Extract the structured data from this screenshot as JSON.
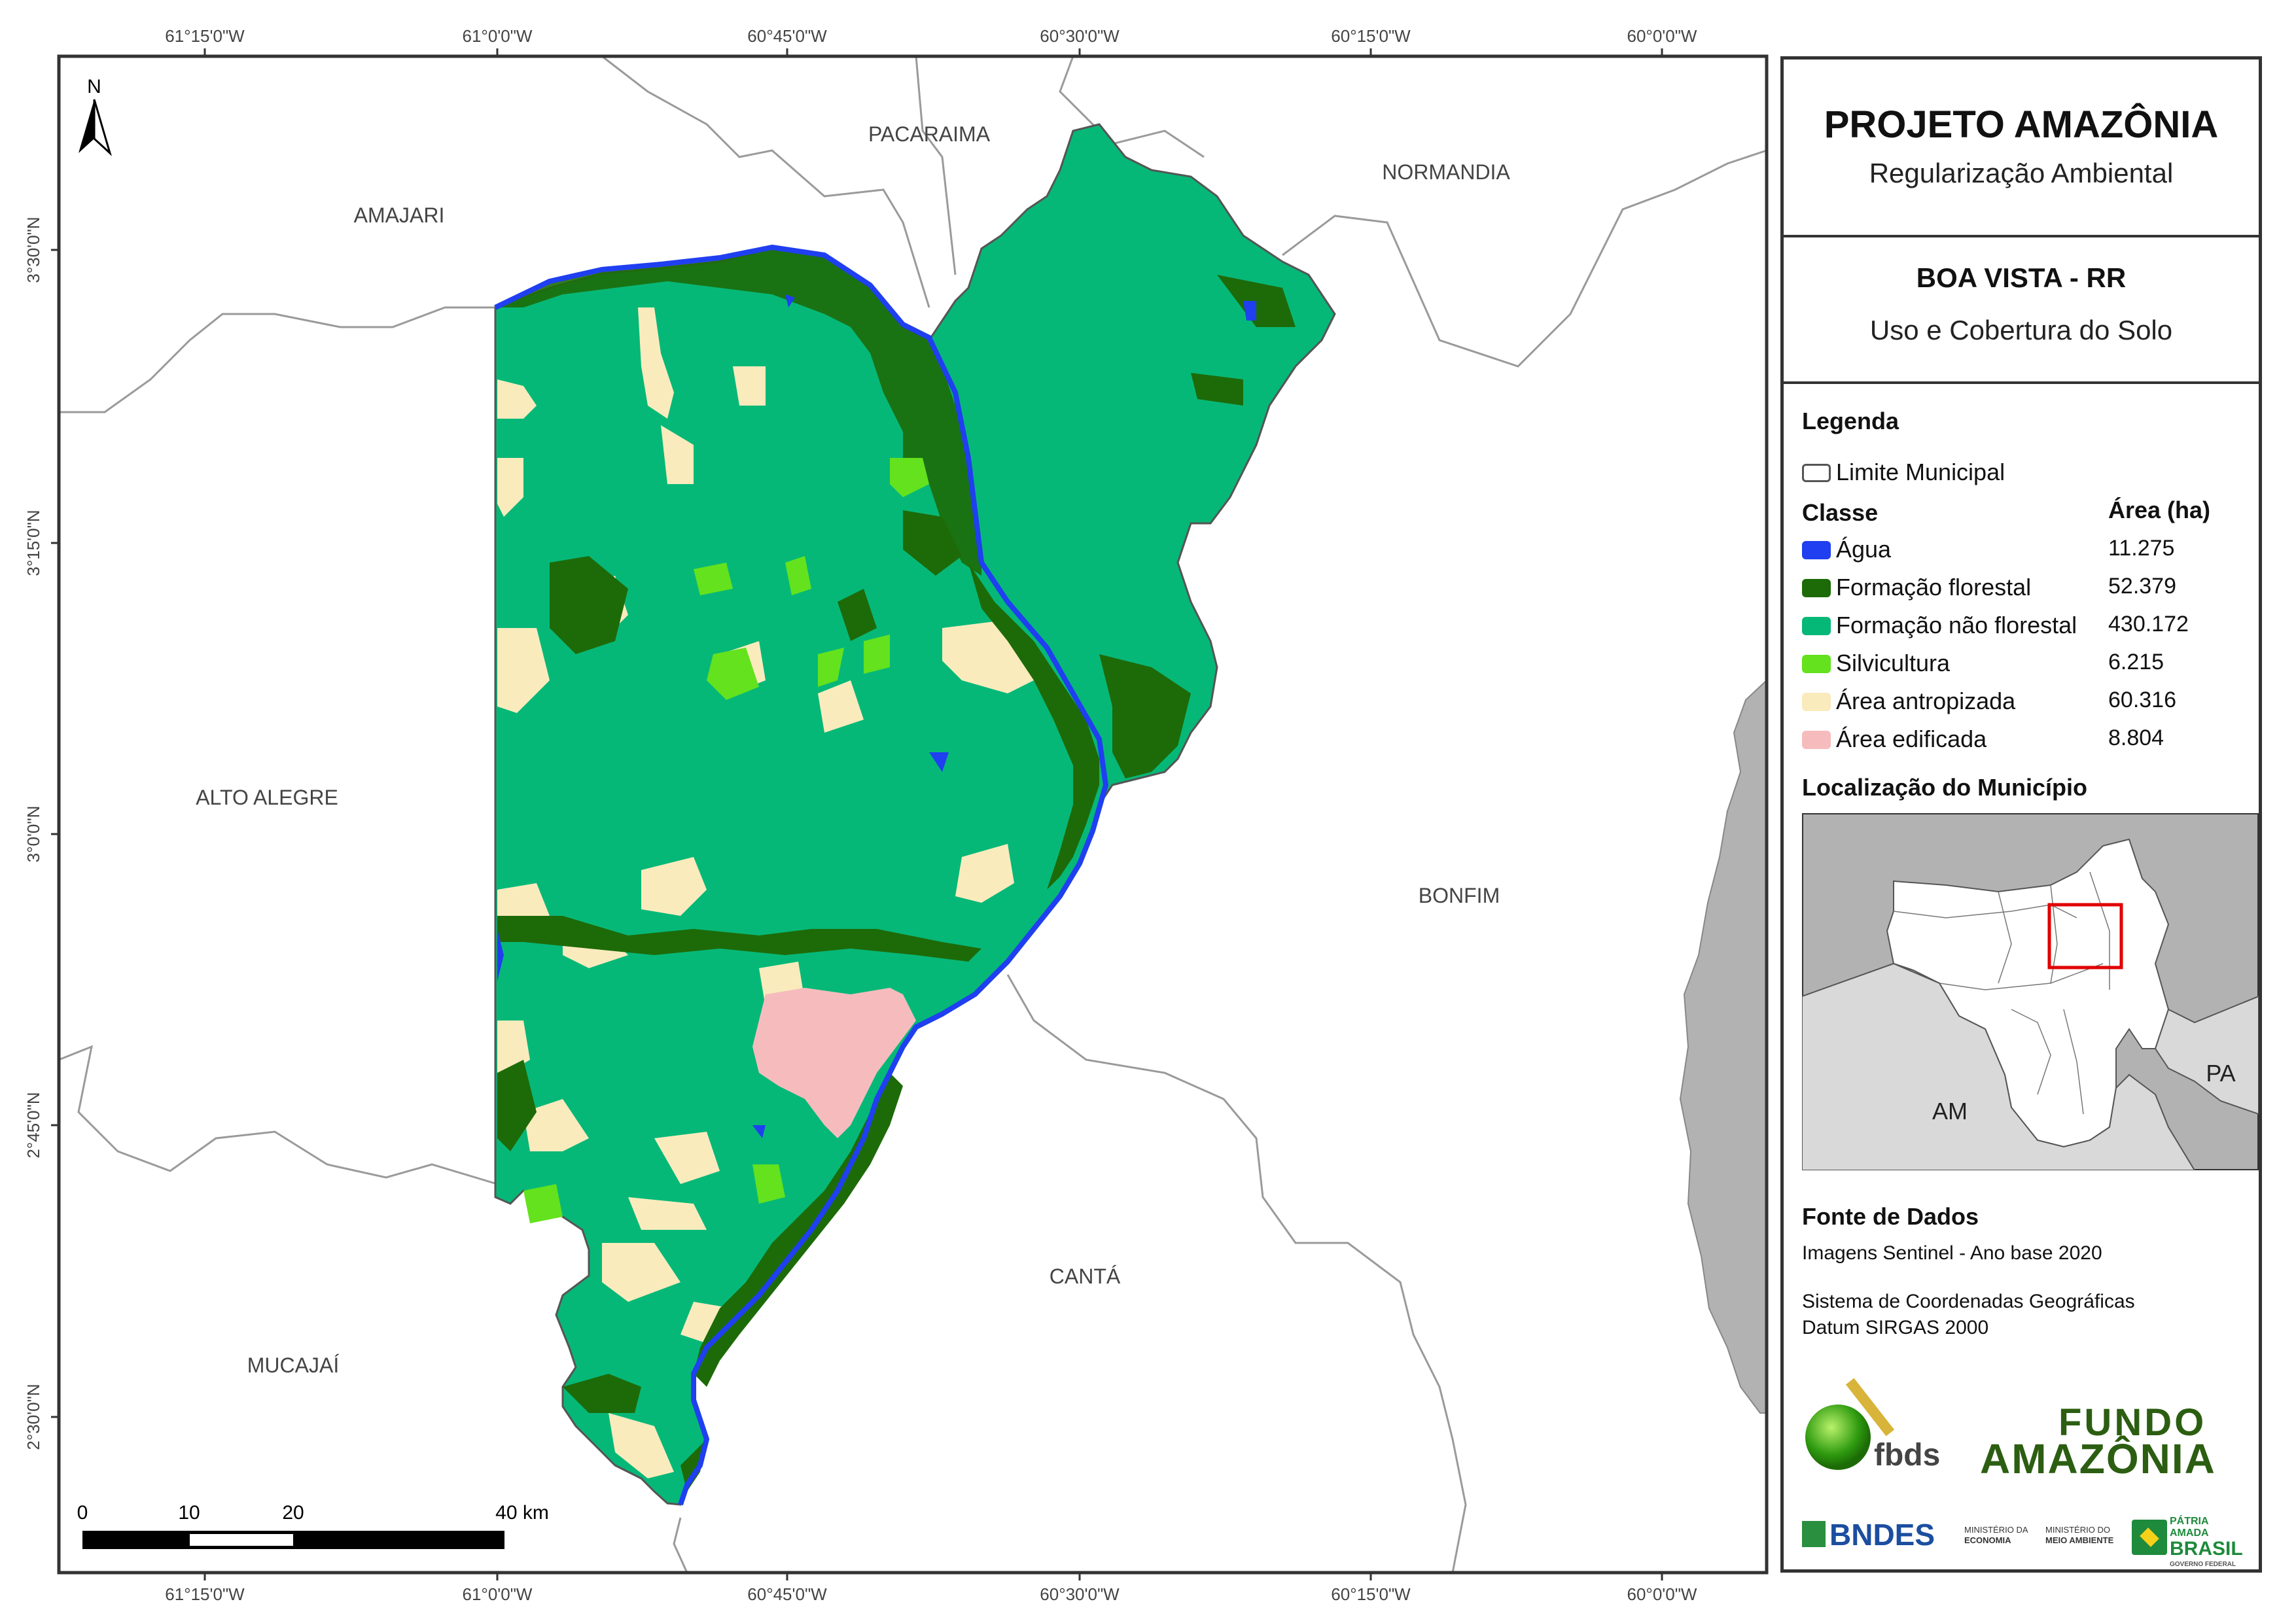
{
  "map": {
    "top_coords": [
      "61°15'0\"W",
      "61°0'0\"W",
      "60°45'0\"W",
      "60°30'0\"W",
      "60°15'0\"W",
      "60°0'0\"W"
    ],
    "bottom_coords": [
      "61°15'0\"W",
      "61°0'0\"W",
      "60°45'0\"W",
      "60°30'0\"W",
      "60°15'0\"W",
      "60°0'0\"W"
    ],
    "left_coords": [
      "3°30'0\"N",
      "3°15'0\"N",
      "3°0'0\"N",
      "2°45'0\"N",
      "2°30'0\"N"
    ],
    "municipalities": {
      "pacaraima": "PACARAIMA",
      "normandia": "NORMANDIA",
      "amajari": "AMAJARI",
      "alto_alegre": "ALTO ALEGRE",
      "bonfim": "BONFIM",
      "canta": "CANTÁ",
      "mucajai": "MUCAJAÍ"
    },
    "north": "N",
    "scale": {
      "labels": [
        "0",
        "10",
        "20",
        "40 km"
      ]
    },
    "colors": {
      "agua": "#1f3ff0",
      "formacao_florestal": "#1d6b08",
      "formacao_nao_florestal": "#06b878",
      "silvicultura": "#63e21d",
      "area_antropizada": "#faebbd",
      "area_edificada": "#f6bcbd",
      "neighbor_state": "#b2b2b2"
    }
  },
  "panel": {
    "title": "PROJETO AMAZÔNIA",
    "subtitle": "Regularização Ambiental",
    "city": "BOA VISTA - RR",
    "theme": "Uso e Cobertura do Solo",
    "legend_title": "Legenda",
    "limit_label": "Limite Municipal",
    "class_header": "Classe",
    "area_header": "Área (ha)",
    "classes": [
      {
        "name": "Água",
        "area": "11.275",
        "color": "#1f3ff0"
      },
      {
        "name": "Formação florestal",
        "area": "52.379",
        "color": "#1d6b08"
      },
      {
        "name": "Formação não florestal",
        "area": "430.172",
        "color": "#06b878"
      },
      {
        "name": "Silvicultura",
        "area": "6.215",
        "color": "#63e21d"
      },
      {
        "name": "Área antropizada",
        "area": "60.316",
        "color": "#faebbd"
      },
      {
        "name": "Área edificada",
        "area": "8.804",
        "color": "#f6bcbd"
      }
    ],
    "location_title": "Localização do Município",
    "inset": {
      "am": "AM",
      "pa": "PA"
    },
    "sources_title": "Fonte de Dados",
    "source_1": "Imagens Sentinel - Ano base 2020",
    "source_2": "Sistema de Coordenadas Geográficas",
    "source_3": "Datum SIRGAS 2000",
    "logos": {
      "fbds": "fbds",
      "fundo_1": "FUNDO",
      "fundo_2": "AMAZÔNIA",
      "bndes": "BNDES",
      "min_economia_1": "MINISTÉRIO DA",
      "min_economia_2": "ECONOMIA",
      "min_ambiente_1": "MINISTÉRIO DO",
      "min_ambiente_2": "MEIO AMBIENTE",
      "patria_1": "PÁTRIA AMADA",
      "patria_2": "BRASIL",
      "patria_3": "GOVERNO FEDERAL"
    }
  }
}
